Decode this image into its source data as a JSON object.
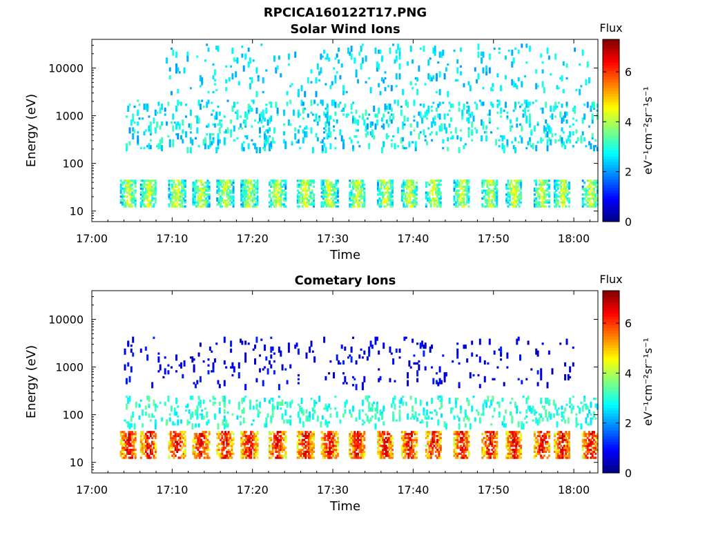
{
  "figure": {
    "title": "RPCICA160122T17.PNG"
  },
  "chart_data": [
    {
      "type": "heatmap",
      "title": "Solar Wind Ions",
      "xlabel": "Time",
      "ylabel": "Energy (eV)",
      "x_ticks": [
        "17:00",
        "17:10",
        "17:20",
        "17:30",
        "17:40",
        "17:50",
        "18:00"
      ],
      "x_range": [
        "17:00",
        "18:03"
      ],
      "y_scale": "log",
      "y_ticks": [
        10,
        100,
        1000,
        10000
      ],
      "y_range": [
        6,
        40000
      ],
      "colorbar": {
        "title": "Flux",
        "label": "eV⁻¹cm⁻²sr⁻¹s⁻¹",
        "ticks": [
          0,
          2,
          4,
          6
        ],
        "range": [
          0,
          7.3
        ]
      },
      "bands": [
        {
          "energy_range": [
            12,
            45
          ],
          "flux_range": [
            1.5,
            4.5
          ],
          "time_centers_min": [
            4.5,
            7.0,
            10.5,
            13.5,
            16.5,
            19.5,
            23.0,
            26.5,
            29.5,
            33.0,
            36.5,
            39.5,
            42.5,
            46.0,
            49.5,
            52.5,
            56.0,
            58.5,
            62.0
          ]
        },
        {
          "energy_range": [
            200,
            2000
          ],
          "flux_range": [
            2.0,
            3.3
          ],
          "time_range_min": [
            4,
            63
          ]
        },
        {
          "energy_range": [
            3000,
            30000
          ],
          "flux_range": [
            2.0,
            3.0
          ],
          "time_range_min": [
            9,
            62
          ]
        }
      ]
    },
    {
      "type": "heatmap",
      "title": "Cometary Ions",
      "xlabel": "Time",
      "ylabel": "Energy (eV)",
      "x_ticks": [
        "17:00",
        "17:10",
        "17:20",
        "17:30",
        "17:40",
        "17:50",
        "18:00"
      ],
      "x_range": [
        "17:00",
        "18:03"
      ],
      "y_scale": "log",
      "y_ticks": [
        10,
        100,
        1000,
        10000
      ],
      "y_range": [
        6,
        40000
      ],
      "colorbar": {
        "title": "Flux",
        "label": "eV⁻¹cm⁻²sr⁻¹s⁻¹",
        "ticks": [
          0,
          2,
          4,
          6
        ],
        "range": [
          0,
          7.3
        ]
      },
      "bands": [
        {
          "energy_range": [
            12,
            45
          ],
          "flux_range": [
            3.5,
            6.8
          ],
          "time_centers_min": [
            4.5,
            7.0,
            10.5,
            13.5,
            16.5,
            19.5,
            23.0,
            26.5,
            29.5,
            33.0,
            36.5,
            39.5,
            42.5,
            46.0,
            49.5,
            52.5,
            56.0,
            58.5,
            62.0
          ]
        },
        {
          "energy_range": [
            60,
            250
          ],
          "flux_range": [
            2.5,
            3.5
          ],
          "time_range_min": [
            4,
            63
          ]
        },
        {
          "energy_range": [
            400,
            4000
          ],
          "flux_range": [
            0.4,
            1.2
          ],
          "time_range_min": [
            4,
            60
          ]
        }
      ]
    }
  ]
}
